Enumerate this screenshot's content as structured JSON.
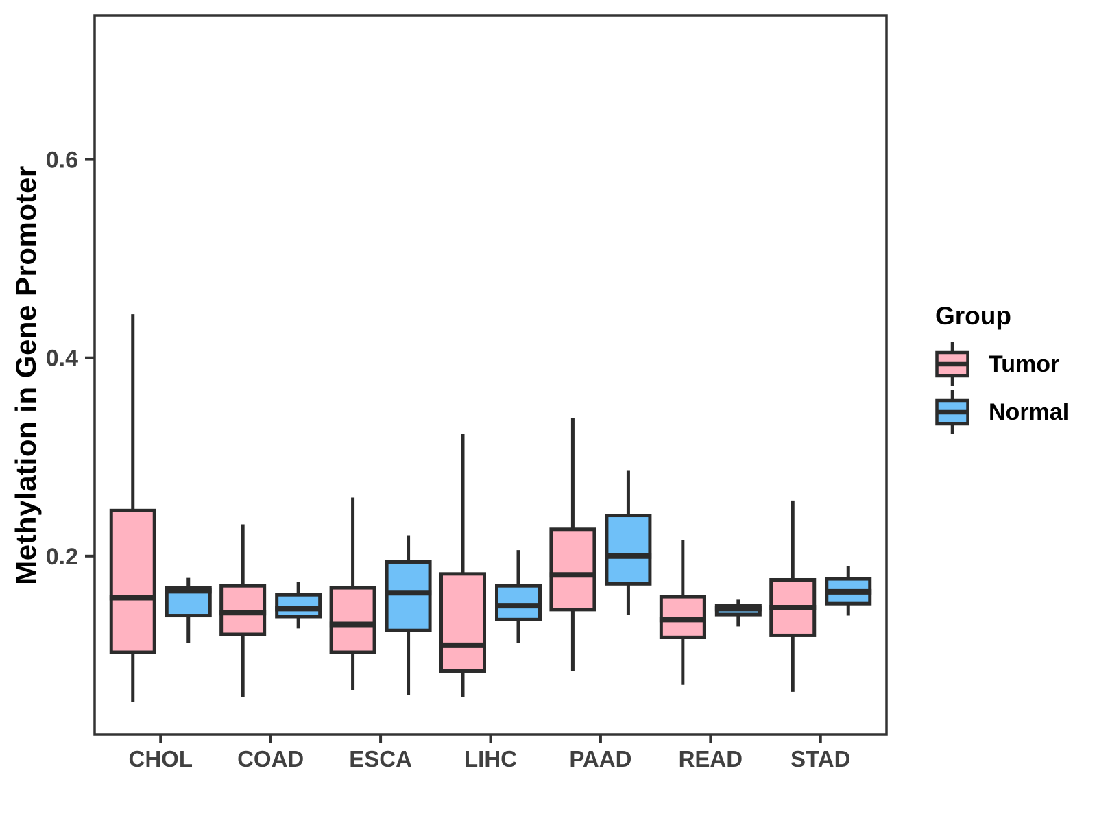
{
  "figure": {
    "background": "#FFFFFF",
    "y_axis_title": "Methylation in Gene Promoter",
    "x_axis_title": "",
    "axis_text_color": "#404040",
    "axis_line_color": "#333333"
  },
  "legend": {
    "title": "Group",
    "items": [
      {
        "label": "Tumor",
        "color": "#FFB3C1"
      },
      {
        "label": "Normal",
        "color": "#6FC0F8"
      }
    ]
  },
  "chart_data": {
    "type": "boxplot",
    "title": "",
    "xlabel": "",
    "ylabel": "Methylation in Gene Promoter",
    "ylim": [
      0.02,
      0.745
    ],
    "y_ticks": [
      0.2,
      0.4,
      0.6
    ],
    "y_tick_labels": [
      "0.2",
      "0.4",
      "0.6"
    ],
    "categories": [
      "CHOL",
      "COAD",
      "ESCA",
      "LIHC",
      "PAAD",
      "READ",
      "STAD"
    ],
    "grid": false,
    "legend_title": "Group",
    "legend_position": "right",
    "box_border_color": "#2B2B2B",
    "series": [
      {
        "name": "Tumor",
        "color": "#FFB3C1",
        "boxes": [
          {
            "category": "CHOL",
            "whisker_low": 0.053,
            "q1": 0.103,
            "median": 0.158,
            "q3": 0.246,
            "whisker_high": 0.444
          },
          {
            "category": "COAD",
            "whisker_low": 0.058,
            "q1": 0.121,
            "median": 0.143,
            "q3": 0.17,
            "whisker_high": 0.232
          },
          {
            "category": "ESCA",
            "whisker_low": 0.065,
            "q1": 0.103,
            "median": 0.131,
            "q3": 0.168,
            "whisker_high": 0.259
          },
          {
            "category": "LIHC",
            "whisker_low": 0.058,
            "q1": 0.084,
            "median": 0.11,
            "q3": 0.182,
            "whisker_high": 0.323
          },
          {
            "category": "PAAD",
            "whisker_low": 0.084,
            "q1": 0.146,
            "median": 0.181,
            "q3": 0.227,
            "whisker_high": 0.339
          },
          {
            "category": "READ",
            "whisker_low": 0.07,
            "q1": 0.118,
            "median": 0.136,
            "q3": 0.159,
            "whisker_high": 0.216
          },
          {
            "category": "STAD",
            "whisker_low": 0.063,
            "q1": 0.12,
            "median": 0.148,
            "q3": 0.176,
            "whisker_high": 0.256
          }
        ]
      },
      {
        "name": "Normal",
        "color": "#6FC0F8",
        "boxes": [
          {
            "category": "CHOL",
            "whisker_low": 0.112,
            "q1": 0.14,
            "median": 0.165,
            "q3": 0.168,
            "whisker_high": 0.178
          },
          {
            "category": "COAD",
            "whisker_low": 0.127,
            "q1": 0.139,
            "median": 0.147,
            "q3": 0.161,
            "whisker_high": 0.174
          },
          {
            "category": "ESCA",
            "whisker_low": 0.06,
            "q1": 0.125,
            "median": 0.163,
            "q3": 0.194,
            "whisker_high": 0.221
          },
          {
            "category": "LIHC",
            "whisker_low": 0.112,
            "q1": 0.136,
            "median": 0.15,
            "q3": 0.17,
            "whisker_high": 0.206
          },
          {
            "category": "PAAD",
            "whisker_low": 0.141,
            "q1": 0.172,
            "median": 0.2,
            "q3": 0.241,
            "whisker_high": 0.286
          },
          {
            "category": "READ",
            "whisker_low": 0.129,
            "q1": 0.141,
            "median": 0.147,
            "q3": 0.15,
            "whisker_high": 0.156
          },
          {
            "category": "STAD",
            "whisker_low": 0.14,
            "q1": 0.152,
            "median": 0.164,
            "q3": 0.177,
            "whisker_high": 0.19
          }
        ]
      }
    ]
  }
}
